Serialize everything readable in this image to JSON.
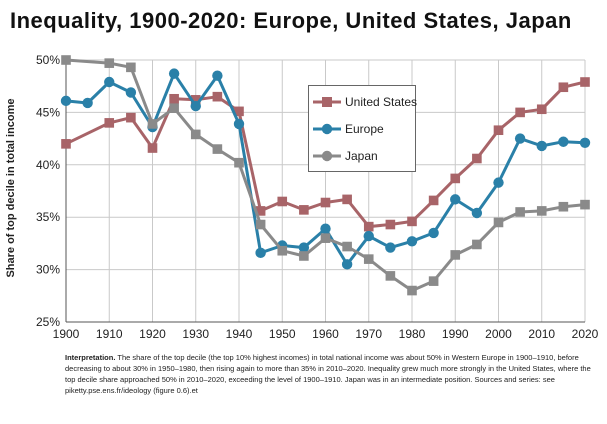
{
  "title": "Inequality, 1900-2020: Europe, United States, Japan",
  "caption": {
    "lead": "Interpretation.",
    "text": " The share of the top decile (the top 10% highest incomes) in total national income was about 50% in Western Europe in 1900–1910, before decreasing to about 30% in 1950–1980, then rising again to more than 35% in 2010–2020. Inequality grew much more strongly in the United States, where the top decile share approached 50% in 2010–2020, exceeding the level of 1900–1910. Japan was in an intermediate position. Sources and series: see piketty.pse.ens.fr/ideology (figure 0.6).et"
  },
  "chart_data": {
    "type": "line",
    "title": "Inequality, 1900-2020: Europe, United States, Japan",
    "xlabel": "",
    "ylabel": "Share of top decile in total income",
    "xlim": [
      1900,
      2020
    ],
    "ylim": [
      25,
      50
    ],
    "xticks": [
      1900,
      1910,
      1920,
      1930,
      1940,
      1950,
      1960,
      1970,
      1980,
      1990,
      2000,
      2010,
      2020
    ],
    "yticks": [
      25,
      30,
      35,
      40,
      45,
      50
    ],
    "ytick_labels": [
      "25%",
      "30%",
      "35%",
      "40%",
      "45%",
      "50%"
    ],
    "grid": true,
    "legend_position": "upper-center",
    "series": [
      {
        "name": "United States",
        "color": "#a86468",
        "marker": "square",
        "x": [
          1900,
          1910,
          1915,
          1920,
          1925,
          1930,
          1935,
          1940,
          1945,
          1950,
          1955,
          1960,
          1965,
          1970,
          1975,
          1980,
          1985,
          1990,
          1995,
          2000,
          2005,
          2010,
          2015,
          2020
        ],
        "y": [
          42.0,
          44.0,
          44.5,
          41.6,
          46.3,
          46.2,
          46.5,
          45.1,
          35.6,
          36.5,
          35.7,
          36.4,
          36.7,
          34.1,
          34.3,
          34.6,
          36.6,
          38.7,
          40.6,
          43.3,
          45.0,
          45.3,
          47.4,
          47.9
        ]
      },
      {
        "name": "Europe",
        "color": "#2a80a8",
        "marker": "circle",
        "x": [
          1900,
          1905,
          1910,
          1915,
          1920,
          1925,
          1930,
          1935,
          1940,
          1945,
          1950,
          1955,
          1960,
          1965,
          1970,
          1975,
          1980,
          1985,
          1990,
          1995,
          2000,
          2005,
          2010,
          2015,
          2020
        ],
        "y": [
          46.1,
          45.9,
          47.9,
          46.9,
          43.6,
          48.7,
          45.6,
          48.5,
          43.9,
          31.6,
          32.3,
          32.1,
          33.9,
          30.5,
          33.2,
          32.1,
          32.7,
          33.5,
          36.7,
          35.4,
          38.3,
          42.5,
          41.8,
          42.2,
          42.1
        ]
      },
      {
        "name": "Japan",
        "color": "#8a8a8a",
        "marker": "square",
        "x": [
          1900,
          1910,
          1915,
          1920,
          1925,
          1930,
          1935,
          1940,
          1945,
          1950,
          1955,
          1960,
          1965,
          1970,
          1975,
          1980,
          1985,
          1990,
          1995,
          2000,
          2005,
          2010,
          2015,
          2020
        ],
        "y": [
          50.0,
          49.7,
          49.3,
          43.9,
          45.4,
          42.9,
          41.5,
          40.2,
          34.3,
          31.8,
          31.3,
          33.0,
          32.2,
          31.0,
          29.4,
          28.0,
          28.9,
          31.4,
          32.4,
          34.5,
          35.5,
          35.6,
          36.0,
          36.2
        ]
      }
    ]
  }
}
